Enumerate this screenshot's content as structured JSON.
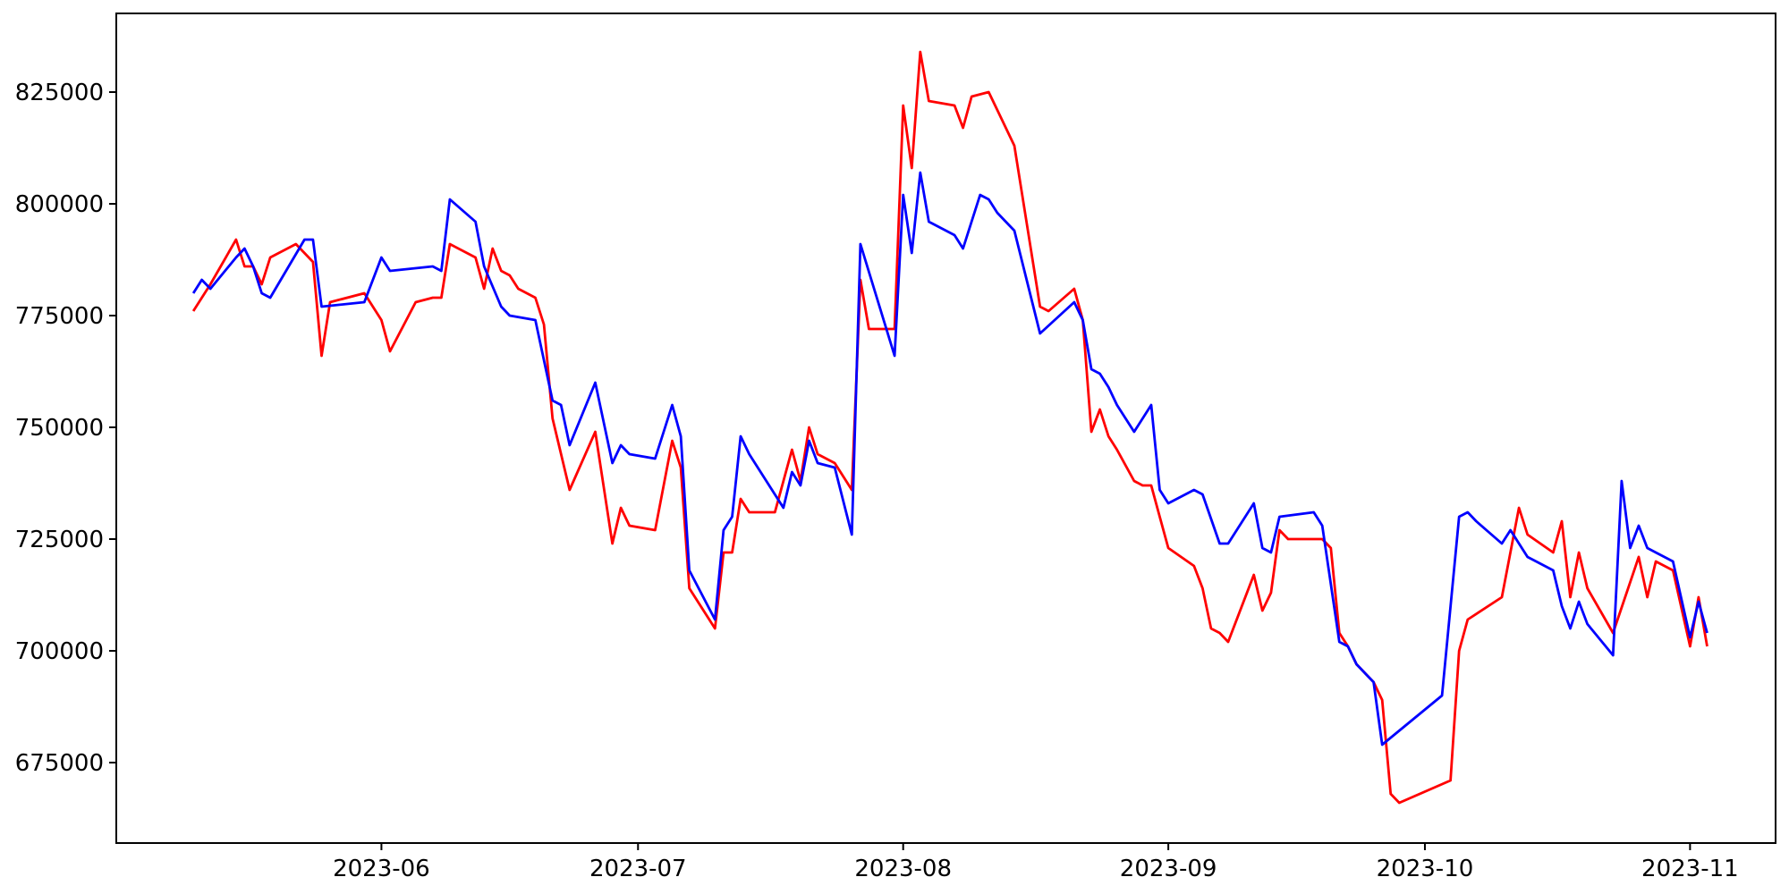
{
  "figure": {
    "background": "#ffffff",
    "title": "",
    "legend": null
  },
  "chart_data": {
    "type": "line",
    "title": "",
    "xlabel": "",
    "ylabel": "",
    "grid": false,
    "legend_position": "none",
    "axis_color": "#000000",
    "x_axis": {
      "range": [
        "2023-05-01",
        "2023-11-11"
      ],
      "ticks": [
        "2023-06",
        "2023-07",
        "2023-08",
        "2023-09",
        "2023-10",
        "2023-11"
      ]
    },
    "y_axis": {
      "range": [
        657000,
        842600
      ],
      "ticks": [
        675000,
        700000,
        725000,
        750000,
        775000,
        800000,
        825000
      ]
    },
    "series": [
      {
        "name": "series_red",
        "color": "#ff0000",
        "points": [
          [
            "2023-05-10",
            776000
          ],
          [
            "2023-05-12",
            782000
          ],
          [
            "2023-05-15",
            792000
          ],
          [
            "2023-05-16",
            786000
          ],
          [
            "2023-05-17",
            786000
          ],
          [
            "2023-05-18",
            782000
          ],
          [
            "2023-05-19",
            788000
          ],
          [
            "2023-05-22",
            791000
          ],
          [
            "2023-05-24",
            787000
          ],
          [
            "2023-05-25",
            766000
          ],
          [
            "2023-05-26",
            778000
          ],
          [
            "2023-05-30",
            780000
          ],
          [
            "2023-06-01",
            774000
          ],
          [
            "2023-06-02",
            767000
          ],
          [
            "2023-06-05",
            778000
          ],
          [
            "2023-06-07",
            779000
          ],
          [
            "2023-06-08",
            779000
          ],
          [
            "2023-06-09",
            791000
          ],
          [
            "2023-06-12",
            788000
          ],
          [
            "2023-06-13",
            781000
          ],
          [
            "2023-06-14",
            790000
          ],
          [
            "2023-06-15",
            785000
          ],
          [
            "2023-06-16",
            784000
          ],
          [
            "2023-06-17",
            781000
          ],
          [
            "2023-06-19",
            779000
          ],
          [
            "2023-06-20",
            773000
          ],
          [
            "2023-06-21",
            752000
          ],
          [
            "2023-06-23",
            736000
          ],
          [
            "2023-06-26",
            749000
          ],
          [
            "2023-06-28",
            724000
          ],
          [
            "2023-06-29",
            732000
          ],
          [
            "2023-06-30",
            728000
          ],
          [
            "2023-07-03",
            727000
          ],
          [
            "2023-07-05",
            747000
          ],
          [
            "2023-07-06",
            741000
          ],
          [
            "2023-07-07",
            714000
          ],
          [
            "2023-07-10",
            705000
          ],
          [
            "2023-07-11",
            722000
          ],
          [
            "2023-07-12",
            722000
          ],
          [
            "2023-07-13",
            734000
          ],
          [
            "2023-07-14",
            731000
          ],
          [
            "2023-07-17",
            731000
          ],
          [
            "2023-07-19",
            745000
          ],
          [
            "2023-07-20",
            738000
          ],
          [
            "2023-07-21",
            750000
          ],
          [
            "2023-07-22",
            744000
          ],
          [
            "2023-07-24",
            742000
          ],
          [
            "2023-07-26",
            736000
          ],
          [
            "2023-07-27",
            783000
          ],
          [
            "2023-07-28",
            772000
          ],
          [
            "2023-07-31",
            772000
          ],
          [
            "2023-08-01",
            822000
          ],
          [
            "2023-08-02",
            808000
          ],
          [
            "2023-08-03",
            834000
          ],
          [
            "2023-08-04",
            823000
          ],
          [
            "2023-08-07",
            822000
          ],
          [
            "2023-08-08",
            817000
          ],
          [
            "2023-08-09",
            824000
          ],
          [
            "2023-08-11",
            825000
          ],
          [
            "2023-08-12",
            821000
          ],
          [
            "2023-08-14",
            813000
          ],
          [
            "2023-08-17",
            777000
          ],
          [
            "2023-08-18",
            776000
          ],
          [
            "2023-08-21",
            781000
          ],
          [
            "2023-08-22",
            774000
          ],
          [
            "2023-08-23",
            749000
          ],
          [
            "2023-08-24",
            754000
          ],
          [
            "2023-08-25",
            748000
          ],
          [
            "2023-08-26",
            745000
          ],
          [
            "2023-08-28",
            738000
          ],
          [
            "2023-08-29",
            737000
          ],
          [
            "2023-08-30",
            737000
          ],
          [
            "2023-08-31",
            730000
          ],
          [
            "2023-09-01",
            723000
          ],
          [
            "2023-09-04",
            719000
          ],
          [
            "2023-09-05",
            714000
          ],
          [
            "2023-09-06",
            705000
          ],
          [
            "2023-09-07",
            704000
          ],
          [
            "2023-09-08",
            702000
          ],
          [
            "2023-09-11",
            717000
          ],
          [
            "2023-09-12",
            709000
          ],
          [
            "2023-09-13",
            713000
          ],
          [
            "2023-09-14",
            727000
          ],
          [
            "2023-09-15",
            725000
          ],
          [
            "2023-09-19",
            725000
          ],
          [
            "2023-09-20",
            723000
          ],
          [
            "2023-09-21",
            704000
          ],
          [
            "2023-09-22",
            701000
          ],
          [
            "2023-09-23",
            697000
          ],
          [
            "2023-09-25",
            693000
          ],
          [
            "2023-09-26",
            689000
          ],
          [
            "2023-09-27",
            668000
          ],
          [
            "2023-09-28",
            666000
          ],
          [
            "2023-10-04",
            671000
          ],
          [
            "2023-10-05",
            700000
          ],
          [
            "2023-10-06",
            707000
          ],
          [
            "2023-10-10",
            712000
          ],
          [
            "2023-10-12",
            732000
          ],
          [
            "2023-10-13",
            726000
          ],
          [
            "2023-10-16",
            722000
          ],
          [
            "2023-10-17",
            729000
          ],
          [
            "2023-10-18",
            712000
          ],
          [
            "2023-10-19",
            722000
          ],
          [
            "2023-10-20",
            714000
          ],
          [
            "2023-10-23",
            704000
          ],
          [
            "2023-10-26",
            721000
          ],
          [
            "2023-10-27",
            712000
          ],
          [
            "2023-10-28",
            720000
          ],
          [
            "2023-10-30",
            718000
          ],
          [
            "2023-11-01",
            701000
          ],
          [
            "2023-11-02",
            712000
          ],
          [
            "2023-11-03",
            701000
          ]
        ]
      },
      {
        "name": "series_blue",
        "color": "#0000ff",
        "points": [
          [
            "2023-05-10",
            780000
          ],
          [
            "2023-05-11",
            783000
          ],
          [
            "2023-05-12",
            781000
          ],
          [
            "2023-05-15",
            788000
          ],
          [
            "2023-05-16",
            790000
          ],
          [
            "2023-05-17",
            786000
          ],
          [
            "2023-05-18",
            780000
          ],
          [
            "2023-05-19",
            779000
          ],
          [
            "2023-05-23",
            792000
          ],
          [
            "2023-05-24",
            792000
          ],
          [
            "2023-05-25",
            777000
          ],
          [
            "2023-05-30",
            778000
          ],
          [
            "2023-06-01",
            788000
          ],
          [
            "2023-06-02",
            785000
          ],
          [
            "2023-06-07",
            786000
          ],
          [
            "2023-06-08",
            785000
          ],
          [
            "2023-06-09",
            801000
          ],
          [
            "2023-06-12",
            796000
          ],
          [
            "2023-06-13",
            786000
          ],
          [
            "2023-06-15",
            777000
          ],
          [
            "2023-06-16",
            775000
          ],
          [
            "2023-06-19",
            774000
          ],
          [
            "2023-06-21",
            756000
          ],
          [
            "2023-06-22",
            755000
          ],
          [
            "2023-06-23",
            746000
          ],
          [
            "2023-06-26",
            760000
          ],
          [
            "2023-06-28",
            742000
          ],
          [
            "2023-06-29",
            746000
          ],
          [
            "2023-06-30",
            744000
          ],
          [
            "2023-07-03",
            743000
          ],
          [
            "2023-07-05",
            755000
          ],
          [
            "2023-07-06",
            748000
          ],
          [
            "2023-07-07",
            718000
          ],
          [
            "2023-07-10",
            707000
          ],
          [
            "2023-07-11",
            727000
          ],
          [
            "2023-07-12",
            730000
          ],
          [
            "2023-07-13",
            748000
          ],
          [
            "2023-07-14",
            744000
          ],
          [
            "2023-07-18",
            732000
          ],
          [
            "2023-07-19",
            740000
          ],
          [
            "2023-07-20",
            737000
          ],
          [
            "2023-07-21",
            747000
          ],
          [
            "2023-07-22",
            742000
          ],
          [
            "2023-07-24",
            741000
          ],
          [
            "2023-07-26",
            726000
          ],
          [
            "2023-07-27",
            791000
          ],
          [
            "2023-07-31",
            766000
          ],
          [
            "2023-08-01",
            802000
          ],
          [
            "2023-08-02",
            789000
          ],
          [
            "2023-08-03",
            807000
          ],
          [
            "2023-08-04",
            796000
          ],
          [
            "2023-08-07",
            793000
          ],
          [
            "2023-08-08",
            790000
          ],
          [
            "2023-08-10",
            802000
          ],
          [
            "2023-08-11",
            801000
          ],
          [
            "2023-08-12",
            798000
          ],
          [
            "2023-08-13",
            796000
          ],
          [
            "2023-08-14",
            794000
          ],
          [
            "2023-08-17",
            771000
          ],
          [
            "2023-08-21",
            778000
          ],
          [
            "2023-08-22",
            774000
          ],
          [
            "2023-08-23",
            763000
          ],
          [
            "2023-08-24",
            762000
          ],
          [
            "2023-08-25",
            759000
          ],
          [
            "2023-08-26",
            755000
          ],
          [
            "2023-08-28",
            749000
          ],
          [
            "2023-08-30",
            755000
          ],
          [
            "2023-08-31",
            736000
          ],
          [
            "2023-09-01",
            733000
          ],
          [
            "2023-09-04",
            736000
          ],
          [
            "2023-09-05",
            735000
          ],
          [
            "2023-09-07",
            724000
          ],
          [
            "2023-09-08",
            724000
          ],
          [
            "2023-09-11",
            733000
          ],
          [
            "2023-09-12",
            723000
          ],
          [
            "2023-09-13",
            722000
          ],
          [
            "2023-09-14",
            730000
          ],
          [
            "2023-09-18",
            731000
          ],
          [
            "2023-09-19",
            728000
          ],
          [
            "2023-09-21",
            702000
          ],
          [
            "2023-09-22",
            701000
          ],
          [
            "2023-09-23",
            697000
          ],
          [
            "2023-09-24",
            695000
          ],
          [
            "2023-09-25",
            693000
          ],
          [
            "2023-09-26",
            679000
          ],
          [
            "2023-10-03",
            690000
          ],
          [
            "2023-10-05",
            730000
          ],
          [
            "2023-10-06",
            731000
          ],
          [
            "2023-10-07",
            729000
          ],
          [
            "2023-10-10",
            724000
          ],
          [
            "2023-10-11",
            727000
          ],
          [
            "2023-10-13",
            721000
          ],
          [
            "2023-10-14",
            720000
          ],
          [
            "2023-10-16",
            718000
          ],
          [
            "2023-10-17",
            710000
          ],
          [
            "2023-10-18",
            705000
          ],
          [
            "2023-10-19",
            711000
          ],
          [
            "2023-10-20",
            706000
          ],
          [
            "2023-10-23",
            699000
          ],
          [
            "2023-10-24",
            738000
          ],
          [
            "2023-10-25",
            723000
          ],
          [
            "2023-10-26",
            728000
          ],
          [
            "2023-10-27",
            723000
          ],
          [
            "2023-10-28",
            722000
          ],
          [
            "2023-10-30",
            720000
          ],
          [
            "2023-11-01",
            703000
          ],
          [
            "2023-11-02",
            711000
          ],
          [
            "2023-11-03",
            704000
          ]
        ]
      }
    ]
  }
}
